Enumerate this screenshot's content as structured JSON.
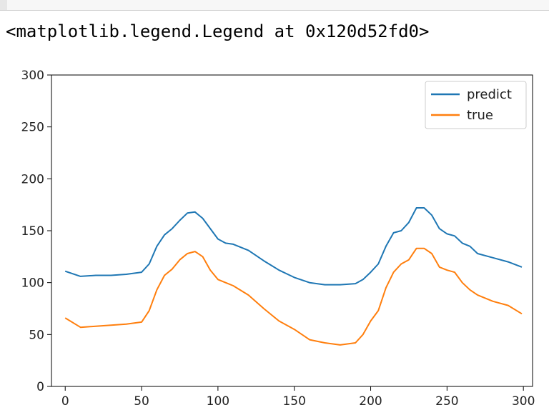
{
  "output_repr": "<matplotlib.legend.Legend at 0x120d52fd0>",
  "chart_data": {
    "type": "line",
    "title": "",
    "xlabel": "",
    "ylabel": "",
    "xlim": [
      -9,
      306
    ],
    "ylim": [
      0,
      300
    ],
    "xticks": [
      0,
      50,
      100,
      150,
      200,
      250,
      300
    ],
    "yticks": [
      0,
      50,
      100,
      150,
      200,
      250,
      300
    ],
    "grid": false,
    "legend_position": "top-right",
    "x": [
      0,
      10,
      20,
      30,
      40,
      50,
      55,
      60,
      65,
      70,
      75,
      80,
      85,
      90,
      95,
      100,
      105,
      110,
      120,
      130,
      140,
      150,
      160,
      170,
      180,
      190,
      195,
      200,
      205,
      210,
      215,
      220,
      225,
      230,
      235,
      240,
      245,
      250,
      255,
      260,
      265,
      270,
      280,
      290,
      299
    ],
    "series": [
      {
        "name": "predict",
        "color": "#1f77b4",
        "values": [
          111,
          106,
          107,
          107,
          108,
          110,
          118,
          135,
          146,
          152,
          160,
          167,
          168,
          162,
          152,
          142,
          138,
          137,
          131,
          121,
          112,
          105,
          100,
          98,
          98,
          99,
          103,
          110,
          118,
          135,
          148,
          150,
          158,
          172,
          172,
          165,
          152,
          147,
          145,
          138,
          135,
          128,
          124,
          120,
          115
        ]
      },
      {
        "name": "true",
        "color": "#ff7f0e",
        "values": [
          66,
          57,
          58,
          59,
          60,
          62,
          73,
          93,
          107,
          113,
          122,
          128,
          130,
          125,
          112,
          103,
          100,
          97,
          88,
          75,
          63,
          55,
          45,
          42,
          40,
          42,
          50,
          63,
          73,
          95,
          110,
          118,
          122,
          133,
          133,
          128,
          115,
          112,
          110,
          100,
          93,
          88,
          82,
          78,
          70
        ]
      }
    ]
  }
}
